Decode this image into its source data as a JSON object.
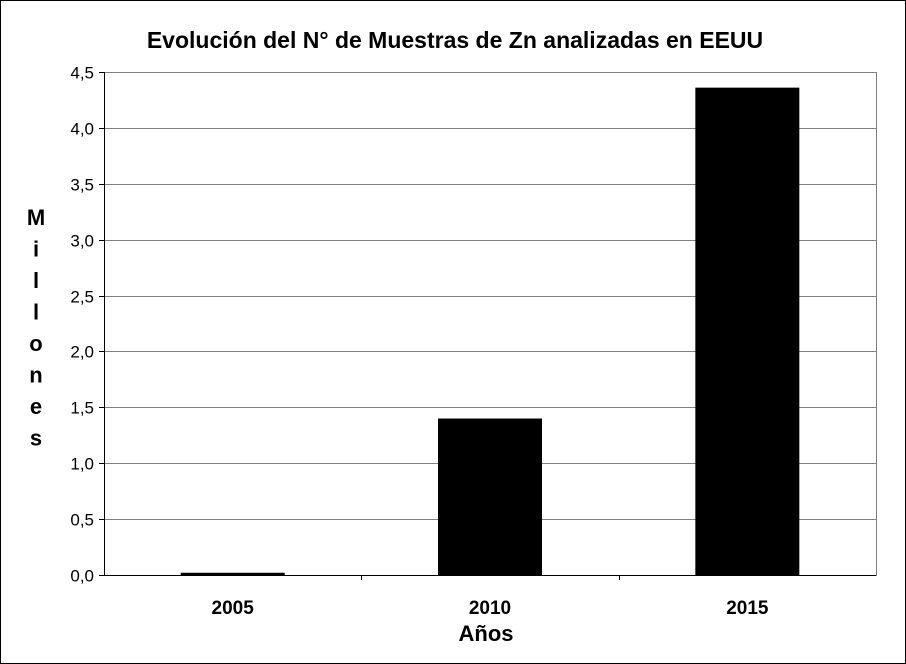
{
  "chart_data": {
    "type": "bar",
    "title": "Evolución del N° de Muestras de Zn analizadas en EEUU",
    "xlabel": "Años",
    "ylabel": "Millones",
    "categories": [
      "2005",
      "2010",
      "2015"
    ],
    "values": [
      0.02,
      1.4,
      4.36
    ],
    "ylim": [
      0,
      4.5
    ],
    "yticks": [
      "0,0",
      "0,5",
      "1,0",
      "1,5",
      "2,0",
      "2,5",
      "3,0",
      "3,5",
      "4,0",
      "4,5"
    ],
    "ytick_values": [
      0,
      0.5,
      1.0,
      1.5,
      2.0,
      2.5,
      3.0,
      3.5,
      4.0,
      4.5
    ],
    "grid": true,
    "bar_color": "#000000",
    "grid_color": "#808080"
  }
}
